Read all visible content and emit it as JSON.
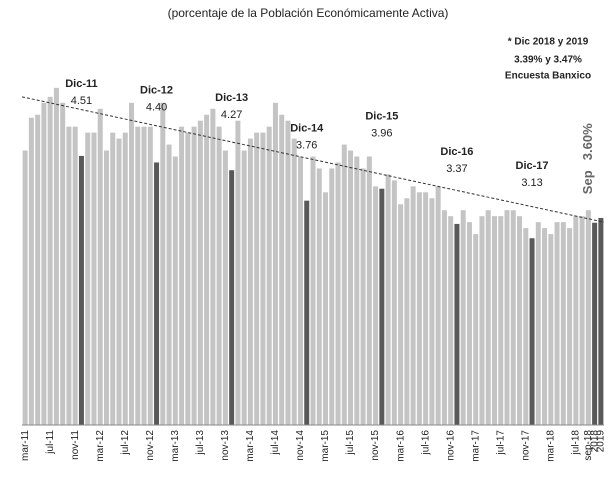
{
  "chart_data": {
    "type": "bar",
    "title": "(porcentaje de la Población Económicamente Activa)",
    "notes": [
      "* Dic 2018 y 2019",
      "3.39% y 3.47%",
      "Encuesta Banxico"
    ],
    "categories": [
      "mar-11",
      null,
      null,
      null,
      "jul-11",
      null,
      null,
      null,
      "nov-11",
      null,
      null,
      null,
      "mar-12",
      null,
      null,
      null,
      "jul-12",
      null,
      null,
      null,
      "nov-12",
      null,
      null,
      null,
      "mar-13",
      null,
      null,
      null,
      "jul-13",
      null,
      null,
      null,
      "nov-13",
      null,
      null,
      null,
      "mar-14",
      null,
      null,
      null,
      "jul-14",
      null,
      null,
      null,
      "nov-14",
      null,
      null,
      null,
      "mar-15",
      null,
      null,
      null,
      "jul-15",
      null,
      null,
      null,
      "nov-15",
      null,
      null,
      null,
      "mar-16",
      null,
      null,
      null,
      "jul-16",
      null,
      null,
      null,
      "nov-16",
      null,
      null,
      null,
      "mar-17",
      null,
      null,
      null,
      "jul-17",
      null,
      null,
      null,
      "nov-17",
      null,
      null,
      null,
      "mar-18",
      null,
      null,
      null,
      "jul-18",
      null,
      "sep-18",
      "2018",
      "2019"
    ],
    "values": [
      4.6,
      5.15,
      5.2,
      5.4,
      5.5,
      5.65,
      5.4,
      5.0,
      5.0,
      4.51,
      4.9,
      4.9,
      5.3,
      4.6,
      4.9,
      4.8,
      4.9,
      5.4,
      5.0,
      5.0,
      5.0,
      4.4,
      5.4,
      4.7,
      4.5,
      5.0,
      4.9,
      5.0,
      5.1,
      5.2,
      5.3,
      5.0,
      4.6,
      4.27,
      5.1,
      4.6,
      4.8,
      4.9,
      4.9,
      5.0,
      5.4,
      5.2,
      5.1,
      4.8,
      4.5,
      3.76,
      4.5,
      4.3,
      3.9,
      4.3,
      4.4,
      4.7,
      4.6,
      4.5,
      4.3,
      4.5,
      4.0,
      3.96,
      4.2,
      4.1,
      3.7,
      3.8,
      4.0,
      3.9,
      3.9,
      3.8,
      4.0,
      3.6,
      3.5,
      3.37,
      3.6,
      3.4,
      3.2,
      3.5,
      3.6,
      3.5,
      3.5,
      3.6,
      3.6,
      3.5,
      3.3,
      3.13,
      3.4,
      3.3,
      3.2,
      3.4,
      3.4,
      3.3,
      3.5,
      3.5,
      3.6,
      3.39,
      3.47
    ],
    "bar_labels": [
      null,
      null,
      null,
      null,
      null,
      null,
      null,
      null,
      null,
      "Dic-11",
      null,
      null,
      null,
      null,
      null,
      null,
      null,
      null,
      null,
      null,
      null,
      "Dic-12",
      null,
      null,
      null,
      null,
      null,
      null,
      null,
      null,
      null,
      null,
      null,
      "Dic-13",
      null,
      null,
      null,
      null,
      null,
      null,
      null,
      null,
      null,
      null,
      null,
      "Dic-14",
      null,
      null,
      null,
      null,
      null,
      null,
      null,
      null,
      null,
      null,
      null,
      "Dic-15",
      null,
      null,
      null,
      null,
      null,
      null,
      null,
      null,
      null,
      null,
      null,
      "Dic-16",
      null,
      null,
      null,
      null,
      null,
      null,
      null,
      null,
      null,
      null,
      null,
      "Dic-17",
      null,
      null,
      null,
      null,
      null,
      null,
      null,
      null,
      "Sep",
      null,
      null
    ],
    "value_labels": [
      null,
      null,
      null,
      null,
      null,
      null,
      null,
      null,
      null,
      "4.51",
      null,
      null,
      null,
      null,
      null,
      null,
      null,
      null,
      null,
      null,
      null,
      "4.40",
      null,
      null,
      null,
      null,
      null,
      null,
      null,
      null,
      null,
      null,
      null,
      "4.27",
      null,
      null,
      null,
      null,
      null,
      null,
      null,
      null,
      null,
      null,
      null,
      "3.76",
      null,
      null,
      null,
      null,
      null,
      null,
      null,
      null,
      null,
      null,
      null,
      "3.96",
      null,
      null,
      null,
      null,
      null,
      null,
      null,
      null,
      null,
      null,
      null,
      "3.37",
      null,
      null,
      null,
      null,
      null,
      null,
      null,
      null,
      null,
      null,
      null,
      "3.13",
      null,
      null,
      null,
      null,
      null,
      null,
      null,
      null,
      "3.60%",
      null,
      null
    ],
    "colors": [
      "#c4c4c4",
      "#c4c4c4",
      "#c4c4c4",
      "#c4c4c4",
      "#c4c4c4",
      "#c4c4c4",
      "#c4c4c4",
      "#c4c4c4",
      "#c4c4c4",
      "#595959",
      "#c4c4c4",
      "#c4c4c4",
      "#c4c4c4",
      "#c4c4c4",
      "#c4c4c4",
      "#c4c4c4",
      "#c4c4c4",
      "#c4c4c4",
      "#c4c4c4",
      "#c4c4c4",
      "#c4c4c4",
      "#595959",
      "#c4c4c4",
      "#c4c4c4",
      "#c4c4c4",
      "#c4c4c4",
      "#c4c4c4",
      "#c4c4c4",
      "#c4c4c4",
      "#c4c4c4",
      "#c4c4c4",
      "#c4c4c4",
      "#c4c4c4",
      "#595959",
      "#c4c4c4",
      "#c4c4c4",
      "#c4c4c4",
      "#c4c4c4",
      "#c4c4c4",
      "#c4c4c4",
      "#c4c4c4",
      "#c4c4c4",
      "#c4c4c4",
      "#c4c4c4",
      "#c4c4c4",
      "#595959",
      "#c4c4c4",
      "#c4c4c4",
      "#c4c4c4",
      "#c4c4c4",
      "#c4c4c4",
      "#c4c4c4",
      "#c4c4c4",
      "#c4c4c4",
      "#c4c4c4",
      "#c4c4c4",
      "#c4c4c4",
      "#595959",
      "#c4c4c4",
      "#c4c4c4",
      "#c4c4c4",
      "#c4c4c4",
      "#c4c4c4",
      "#c4c4c4",
      "#c4c4c4",
      "#c4c4c4",
      "#c4c4c4",
      "#c4c4c4",
      "#c4c4c4",
      "#595959",
      "#c4c4c4",
      "#c4c4c4",
      "#c4c4c4",
      "#c4c4c4",
      "#c4c4c4",
      "#c4c4c4",
      "#c4c4c4",
      "#c4c4c4",
      "#c4c4c4",
      "#c4c4c4",
      "#c4c4c4",
      "#595959",
      "#c4c4c4",
      "#c4c4c4",
      "#c4c4c4",
      "#c4c4c4",
      "#c4c4c4",
      "#c4c4c4",
      "#c4c4c4",
      "#c4c4c4",
      "#c4c4c4",
      "#595959",
      "#595959"
    ],
    "trend": [
      5.5,
      3.4
    ],
    "ylim": [
      0,
      6
    ]
  }
}
